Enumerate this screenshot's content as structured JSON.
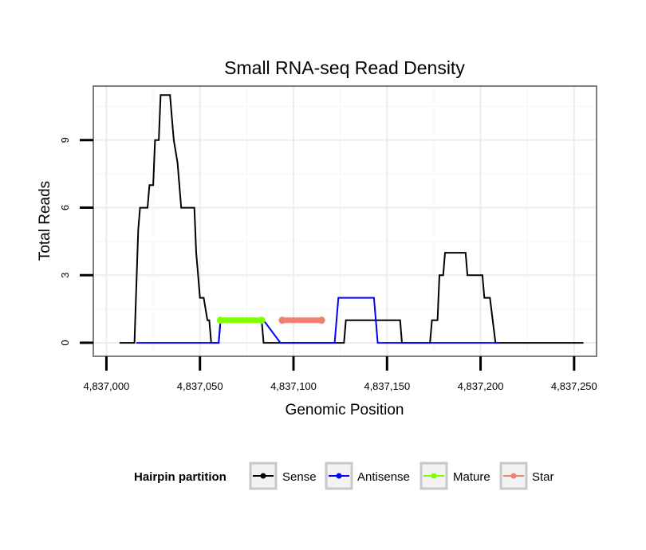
{
  "chart_data": {
    "type": "line",
    "title": "Small RNA-seq Read Density",
    "xlabel": "Genomic Position",
    "ylabel": "Total Reads",
    "xlim": [
      4836993,
      4837262
    ],
    "ylim": [
      -0.6,
      11.4
    ],
    "x_ticks": [
      4837000,
      4837050,
      4837100,
      4837150,
      4837200,
      4837250
    ],
    "x_tick_labels": [
      "4,837,000",
      "4,837,050",
      "4,837,100",
      "4,837,150",
      "4,837,200",
      "4,837,250"
    ],
    "y_ticks": [
      0,
      3,
      6,
      9
    ],
    "y_tick_labels": [
      "0",
      "3",
      "6",
      "9"
    ],
    "grid": true,
    "legend": {
      "title": "Hairpin partition",
      "position": "bottom",
      "items": [
        {
          "name": "Sense",
          "color": "#000000"
        },
        {
          "name": "Antisense",
          "color": "#0000ff"
        },
        {
          "name": "Mature",
          "color": "#7fff00"
        },
        {
          "name": "Star",
          "color": "#f08070"
        }
      ]
    },
    "series": [
      {
        "name": "Sense",
        "color": "#000000",
        "x": [
          4837007,
          4837015,
          4837017,
          4837018,
          4837022,
          4837023,
          4837025,
          4837026,
          4837028,
          4837029,
          4837032,
          4837034,
          4837035,
          4837036,
          4837038,
          4837040,
          4837041,
          4837042,
          4837047,
          4837048,
          4837049,
          4837050,
          4837051,
          4837052,
          4837054,
          4837055,
          4837056,
          4837057,
          4837060,
          4837061,
          4837062,
          4837063,
          4837068,
          4837079,
          4837083,
          4837084,
          4837093,
          4837094,
          4837107,
          4837115,
          4837116,
          4837121,
          4837127,
          4837128,
          4837130,
          4837146,
          4837157,
          4837158,
          4837163,
          4837173,
          4837174,
          4837177,
          4837178,
          4837180,
          4837181,
          4837183,
          4837184,
          4837192,
          4837193,
          4837201,
          4837202,
          4837203,
          4837204,
          4837205,
          4837208,
          4837218,
          4837225,
          4837240,
          4837255
        ],
        "y": [
          0,
          0,
          5,
          6,
          6,
          7,
          7,
          9,
          9,
          11,
          11,
          11,
          10,
          9,
          8,
          6,
          6,
          6,
          6,
          4,
          3,
          2,
          2,
          2,
          1,
          1,
          0,
          0,
          0,
          1,
          1,
          1,
          1,
          1,
          1,
          0,
          0,
          0,
          0,
          0,
          0,
          0,
          0,
          1,
          1,
          1,
          1,
          0,
          0,
          0,
          1,
          1,
          3,
          3,
          4,
          4,
          4,
          4,
          3,
          3,
          2,
          2,
          2,
          2,
          0,
          0,
          0,
          0,
          0
        ]
      },
      {
        "name": "Antisense",
        "color": "#0000ff",
        "x": [
          4837016,
          4837060,
          4837061,
          4837084,
          4837093,
          4837094,
          4837115,
          4837116,
          4837122,
          4837124,
          4837143,
          4837145,
          4837208,
          4837210
        ],
        "y": [
          0,
          0,
          1,
          1,
          0,
          0,
          0,
          0,
          0,
          2,
          2,
          0,
          0,
          0
        ]
      },
      {
        "name": "Mature",
        "color": "#7fff00",
        "x": [
          4837061,
          4837083
        ],
        "y": [
          1,
          1
        ]
      },
      {
        "name": "Star",
        "color": "#f08070",
        "x": [
          4837094,
          4837115
        ],
        "y": [
          1,
          1
        ]
      }
    ]
  }
}
